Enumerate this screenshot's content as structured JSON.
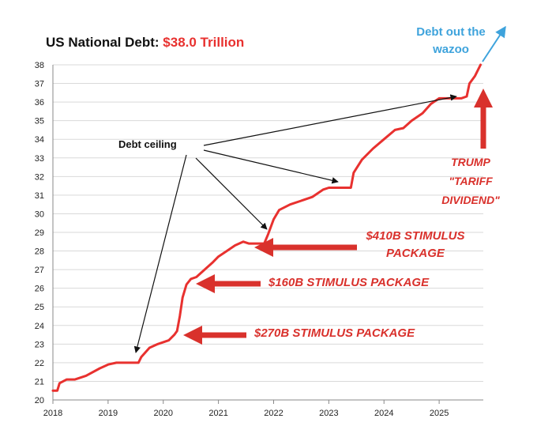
{
  "title": {
    "prefix": "US National Debt:",
    "value": "$38.0 Trillion"
  },
  "annotations": {
    "top_right": "Debt out the wazoo",
    "debt_ceiling": "Debt ceiling",
    "stimulus_270": "$270B STIMULUS PACKAGE",
    "stimulus_160": "$160B STIMULUS PACKAGE",
    "stimulus_410_line1": "$410B STIMULUS",
    "stimulus_410_line2": "PACKAGE",
    "trump_line1": "TRUMP",
    "trump_line2": "\"TARIFF",
    "trump_line3": "DIVIDEND\""
  },
  "colors": {
    "series": "#e8312f",
    "annotation_red": "#d9312c",
    "blue": "#3ea3dc",
    "grid": "#d9d9d9"
  },
  "chart_data": {
    "type": "line",
    "title": "US National Debt: $38.0 Trillion",
    "xlabel": "",
    "ylabel": "",
    "xlim": [
      2018,
      2025.8
    ],
    "ylim": [
      20,
      38
    ],
    "xticks": [
      "2018",
      "2019",
      "2020",
      "2021",
      "2022",
      "2023",
      "2024",
      "2025"
    ],
    "yticks": [
      "20",
      "21",
      "22",
      "23",
      "24",
      "25",
      "26",
      "27",
      "28",
      "29",
      "30",
      "31",
      "32",
      "33",
      "34",
      "35",
      "36",
      "37",
      "38"
    ],
    "grid": true,
    "series": [
      {
        "points": [
          [
            2018.0,
            20.5
          ],
          [
            2018.08,
            20.5
          ],
          [
            2018.12,
            20.9
          ],
          [
            2018.25,
            21.1
          ],
          [
            2018.4,
            21.1
          ],
          [
            2018.6,
            21.3
          ],
          [
            2018.85,
            21.7
          ],
          [
            2019.0,
            21.9
          ],
          [
            2019.15,
            22.0
          ],
          [
            2019.25,
            22.0
          ],
          [
            2019.4,
            22.0
          ],
          [
            2019.55,
            22.0
          ],
          [
            2019.6,
            22.3
          ],
          [
            2019.75,
            22.8
          ],
          [
            2019.9,
            23.0
          ],
          [
            2020.1,
            23.2
          ],
          [
            2020.2,
            23.5
          ],
          [
            2020.25,
            23.7
          ],
          [
            2020.3,
            24.5
          ],
          [
            2020.35,
            25.5
          ],
          [
            2020.42,
            26.2
          ],
          [
            2020.5,
            26.5
          ],
          [
            2020.6,
            26.6
          ],
          [
            2020.75,
            27.0
          ],
          [
            2020.9,
            27.4
          ],
          [
            2021.0,
            27.7
          ],
          [
            2021.15,
            28.0
          ],
          [
            2021.3,
            28.3
          ],
          [
            2021.45,
            28.5
          ],
          [
            2021.55,
            28.4
          ],
          [
            2021.7,
            28.4
          ],
          [
            2021.83,
            28.4
          ],
          [
            2021.9,
            28.9
          ],
          [
            2022.0,
            29.7
          ],
          [
            2022.1,
            30.2
          ],
          [
            2022.3,
            30.5
          ],
          [
            2022.5,
            30.7
          ],
          [
            2022.7,
            30.9
          ],
          [
            2022.9,
            31.3
          ],
          [
            2023.0,
            31.4
          ],
          [
            2023.2,
            31.4
          ],
          [
            2023.4,
            31.4
          ],
          [
            2023.45,
            32.2
          ],
          [
            2023.6,
            32.9
          ],
          [
            2023.8,
            33.5
          ],
          [
            2024.0,
            34.0
          ],
          [
            2024.2,
            34.5
          ],
          [
            2024.35,
            34.6
          ],
          [
            2024.5,
            35.0
          ],
          [
            2024.7,
            35.4
          ],
          [
            2024.85,
            35.9
          ],
          [
            2025.0,
            36.2
          ],
          [
            2025.2,
            36.2
          ],
          [
            2025.4,
            36.2
          ],
          [
            2025.5,
            36.3
          ],
          [
            2025.55,
            37.0
          ],
          [
            2025.65,
            37.4
          ],
          [
            2025.75,
            38.0
          ]
        ]
      }
    ]
  }
}
